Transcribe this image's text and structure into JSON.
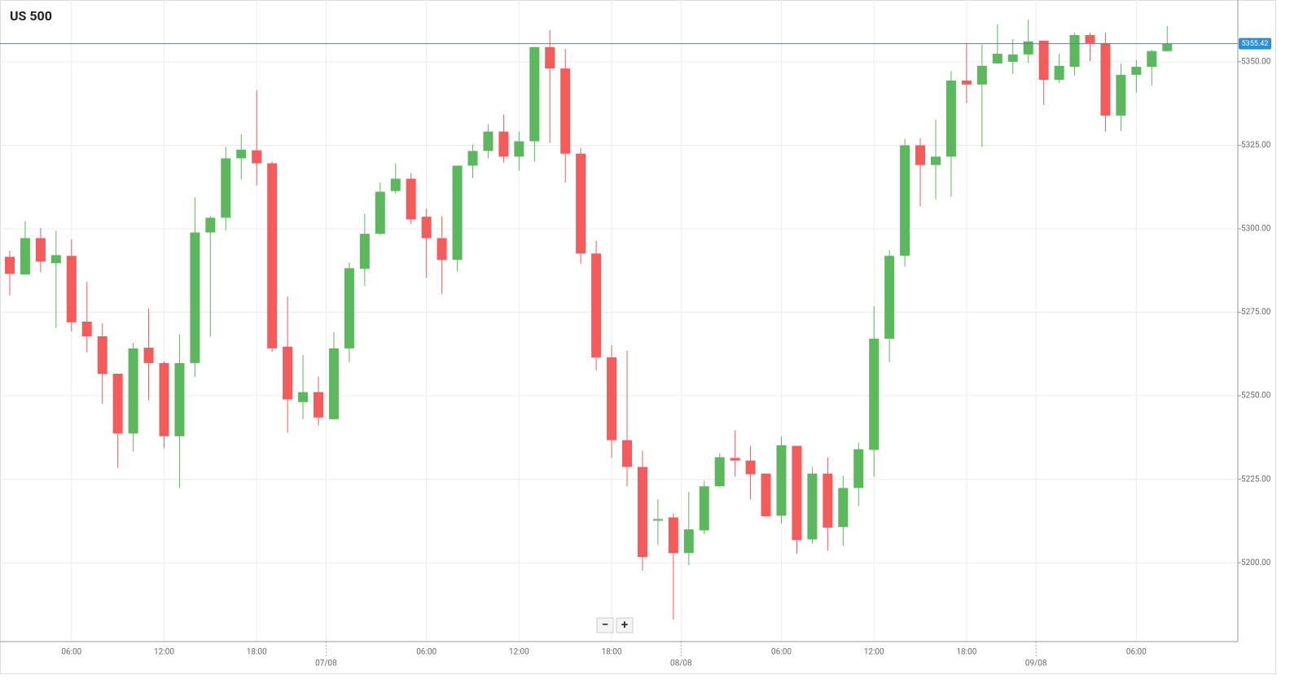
{
  "chart_data": {
    "type": "candlestick",
    "title": "US 500",
    "x": [
      null,
      null,
      null,
      null,
      "06:00",
      null,
      null,
      null,
      null,
      null,
      "12:00",
      null,
      null,
      null,
      null,
      null,
      "18:00",
      null,
      null,
      null,
      null,
      null,
      null,
      null,
      null,
      null,
      null,
      "06:00",
      null,
      null,
      null,
      null,
      null,
      "12:00",
      null,
      null,
      null,
      null,
      null,
      "18:00",
      null,
      null,
      null,
      null,
      null,
      null,
      null,
      null,
      null,
      null,
      "06:00",
      null,
      null,
      null,
      null,
      null,
      "12:00",
      null,
      null,
      null,
      null,
      null,
      "18:00",
      null,
      null,
      null,
      null,
      null,
      null,
      null,
      null,
      null,
      null,
      "06:00",
      null,
      null
    ],
    "date_ticks": [
      {
        "value": 21,
        "label": "07/08"
      },
      {
        "value": 44,
        "label": "08/08"
      },
      {
        "value": 67,
        "label": "09/08"
      }
    ],
    "open": [
      5291.6,
      5286.3,
      5297.2,
      5289.7,
      5291.9,
      5272.2,
      5267.8,
      5256.6,
      5238.7,
      5264.4,
      5259.8,
      5237.9,
      5259.8,
      5298.9,
      5303.3,
      5321.1,
      5323.5,
      5319.6,
      5264.7,
      5248.1,
      5251.1,
      5243.0,
      5264.2,
      5288.0,
      5298.5,
      5311.3,
      5315.0,
      5303.6,
      5297.2,
      5290.7,
      5318.9,
      5323.3,
      5329.1,
      5321.6,
      5326.2,
      5354.4,
      5348.0,
      5322.5,
      5292.6,
      5261.5,
      5236.7,
      5228.7,
      5212.6,
      5213.6,
      5202.9,
      5209.7,
      5222.9,
      5231.4,
      5230.6,
      5226.7,
      5214.1,
      5235.0,
      5207.0,
      5226.7,
      5210.7,
      5222.4,
      5233.8,
      5267.1,
      5291.9,
      5325.0,
      5319.1,
      5321.6,
      5344.4,
      5343.2,
      5349.5,
      5350.0,
      5352.2,
      5356.3,
      5344.6,
      5348.5,
      5358.0,
      5355.6,
      5333.9,
      5346.1,
      5348.5,
      5353.2
    ],
    "high": [
      5293.4,
      5302.3,
      5300.2,
      5299.4,
      5296.8,
      5284.1,
      5271.7,
      5256.6,
      5265.9,
      5276.1,
      5260.3,
      5268.3,
      5309.4,
      5303.8,
      5324.5,
      5328.4,
      5341.5,
      5320.1,
      5279.7,
      5262.2,
      5255.7,
      5269.0,
      5289.9,
      5304.5,
      5313.8,
      5319.6,
      5316.7,
      5306.0,
      5303.8,
      5318.9,
      5325.2,
      5331.3,
      5334.2,
      5329.1,
      5354.4,
      5359.5,
      5353.9,
      5324.2,
      5296.5,
      5265.2,
      5263.5,
      5233.5,
      5219.0,
      5214.8,
      5221.2,
      5224.6,
      5232.8,
      5239.6,
      5235.0,
      5226.7,
      5237.7,
      5235.0,
      5228.7,
      5231.6,
      5226.0,
      5236.0,
      5276.8,
      5293.6,
      5326.9,
      5327.1,
      5332.7,
      5347.3,
      5355.6,
      5355.1,
      5361.2,
      5356.8,
      5362.6,
      5356.3,
      5352.4,
      5358.7,
      5358.7,
      5358.7,
      5349.5,
      5350.5,
      5353.6,
      5360.7
    ],
    "low": [
      5280.0,
      5286.3,
      5287.0,
      5270.3,
      5269.3,
      5263.0,
      5247.6,
      5228.4,
      5233.3,
      5248.6,
      5234.3,
      5222.4,
      5255.7,
      5267.8,
      5299.4,
      5314.7,
      5313.0,
      5263.2,
      5238.9,
      5243.0,
      5241.1,
      5242.8,
      5260.0,
      5282.9,
      5298.0,
      5310.6,
      5301.4,
      5285.3,
      5280.5,
      5287.3,
      5315.2,
      5321.1,
      5319.8,
      5317.4,
      5320.1,
      5325.7,
      5313.8,
      5289.5,
      5257.6,
      5231.4,
      5222.9,
      5197.6,
      5205.3,
      5183.0,
      5199.3,
      5208.5,
      5222.6,
      5225.8,
      5219.0,
      5213.9,
      5211.7,
      5202.7,
      5205.8,
      5203.6,
      5205.1,
      5217.0,
      5225.8,
      5260.0,
      5288.7,
      5306.7,
      5308.7,
      5309.6,
      5337.6,
      5324.5,
      5349.5,
      5346.3,
      5349.7,
      5337.1,
      5343.7,
      5345.9,
      5350.2,
      5329.1,
      5329.3,
      5340.8,
      5342.9,
      5353.2
    ],
    "close": [
      5286.5,
      5297.2,
      5290.2,
      5292.1,
      5272.0,
      5267.8,
      5256.6,
      5238.7,
      5264.2,
      5259.8,
      5237.9,
      5259.8,
      5298.9,
      5303.3,
      5321.1,
      5323.7,
      5319.6,
      5264.2,
      5248.9,
      5251.1,
      5243.5,
      5264.2,
      5288.2,
      5298.5,
      5311.1,
      5315.0,
      5302.8,
      5297.2,
      5290.7,
      5318.9,
      5323.3,
      5329.1,
      5321.6,
      5326.2,
      5354.4,
      5348.0,
      5322.5,
      5292.6,
      5261.5,
      5236.7,
      5228.7,
      5201.7,
      5213.1,
      5202.9,
      5210.0,
      5222.9,
      5231.6,
      5230.6,
      5226.5,
      5213.9,
      5235.2,
      5206.8,
      5226.7,
      5210.5,
      5222.4,
      5234.0,
      5267.1,
      5291.9,
      5325.0,
      5319.1,
      5321.6,
      5344.4,
      5343.2,
      5348.8,
      5352.4,
      5352.2,
      5356.1,
      5344.6,
      5348.8,
      5358.0,
      5355.6,
      5333.9,
      5346.1,
      5348.5,
      5353.2,
      5355.4
    ],
    "up_color": "#5cb85c",
    "down_color": "#f45b5b",
    "ylim": [
      5176.4,
      5368.5
    ],
    "yticks": [
      {
        "value": 5200,
        "label": "5200.00"
      },
      {
        "value": 5225,
        "label": "5225.00"
      },
      {
        "value": 5250,
        "label": "5250.00"
      },
      {
        "value": 5275,
        "label": "5275.00"
      },
      {
        "value": 5300,
        "label": "5300.00"
      },
      {
        "value": 5325,
        "label": "5325.00"
      },
      {
        "value": 5350,
        "label": "5350.00"
      }
    ],
    "price_line": {
      "value": 5355.42,
      "color": "#2b8fd6"
    },
    "grid": true
  },
  "zoom_controls": {
    "zoom_out": "−",
    "zoom_in": "+"
  }
}
